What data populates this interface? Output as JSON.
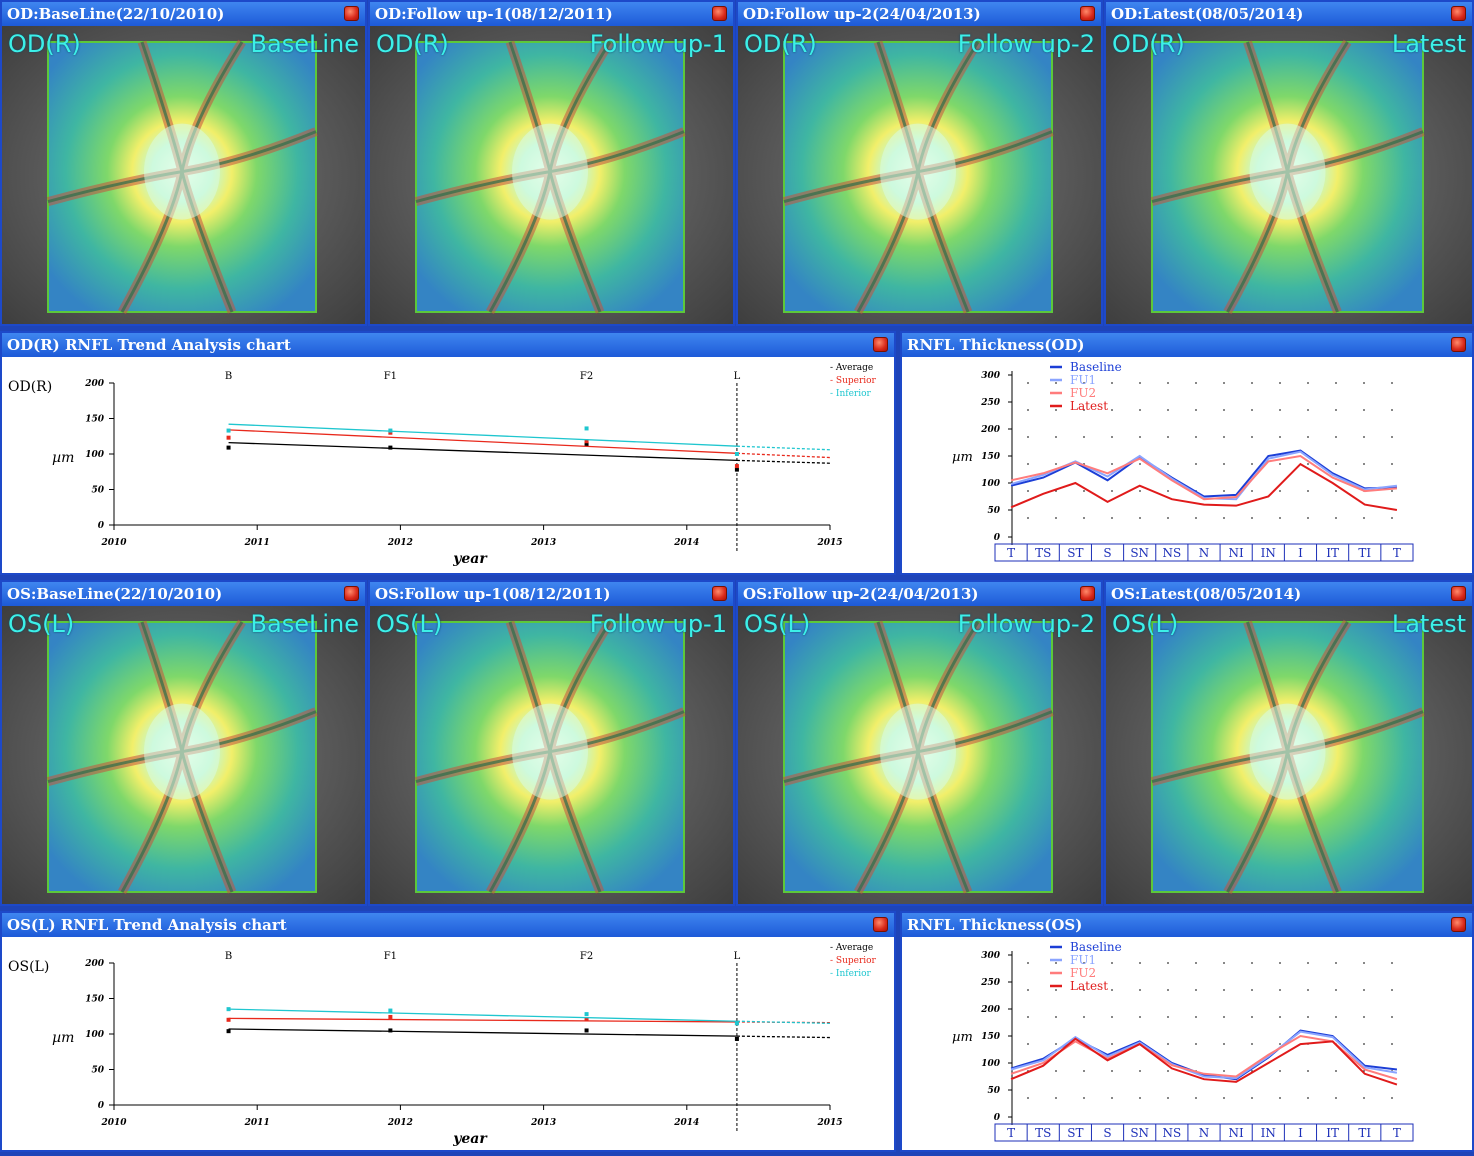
{
  "colors": {
    "average": "#000000",
    "superior": "#e8291c",
    "inferior": "#1fc6cf",
    "baseline": "#1c3ed6",
    "fu1": "#8aa4ff",
    "fu2": "#ff7c7c",
    "latest": "#e01b1b"
  },
  "od_images": [
    {
      "title": "OD:BaseLine(22/10/2010)",
      "eye": "OD(R)",
      "visit": "BaseLine"
    },
    {
      "title": "OD:Follow up-1(08/12/2011)",
      "eye": "OD(R)",
      "visit": "Follow up-1"
    },
    {
      "title": "OD:Follow up-2(24/04/2013)",
      "eye": "OD(R)",
      "visit": "Follow up-2"
    },
    {
      "title": "OD:Latest(08/05/2014)",
      "eye": "OD(R)",
      "visit": "Latest"
    }
  ],
  "os_images": [
    {
      "title": "OS:BaseLine(22/10/2010)",
      "eye": "OS(L)",
      "visit": "BaseLine"
    },
    {
      "title": "OS:Follow up-1(08/12/2011)",
      "eye": "OS(L)",
      "visit": "Follow up-1"
    },
    {
      "title": "OS:Follow up-2(24/04/2013)",
      "eye": "OS(L)",
      "visit": "Follow up-2"
    },
    {
      "title": "OS:Latest(08/05/2014)",
      "eye": "OS(L)",
      "visit": "Latest"
    }
  ],
  "od_trend": {
    "title": "OD(R) RNFL Trend Analysis chart"
  },
  "od_thick": {
    "title": "RNFL Thickness(OD)"
  },
  "os_trend": {
    "title": "OS(L) RNFL Trend Analysis chart"
  },
  "os_thick": {
    "title": "RNFL Thickness(OS)"
  },
  "chart_data": [
    {
      "type": "line",
      "eye_label": "OD(R)",
      "xlabel": "year",
      "ylabel": "µm",
      "xlim": [
        2010,
        2015
      ],
      "ylim": [
        0,
        200
      ],
      "xticks": [
        "2010",
        "2011",
        "2012",
        "2013",
        "2014",
        "2015"
      ],
      "yticks": [
        "0",
        "50",
        "100",
        "150",
        "200"
      ],
      "visit_labels": [
        {
          "label": "B",
          "x": 2010.8
        },
        {
          "label": "F1",
          "x": 2011.93
        },
        {
          "label": "F2",
          "x": 2013.3
        },
        {
          "label": "L",
          "x": 2014.35
        }
      ],
      "legend": [
        "Average",
        "Superior",
        "Inferior"
      ],
      "series": [
        {
          "name": "Average",
          "points": [
            [
              2010.8,
              109
            ],
            [
              2011.93,
              109
            ],
            [
              2013.3,
              114
            ],
            [
              2014.35,
              78
            ]
          ],
          "trend": [
            [
              2010.8,
              116
            ],
            [
              2014.35,
              91
            ]
          ],
          "projection": [
            [
              2014.35,
              91
            ],
            [
              2015,
              87
            ]
          ]
        },
        {
          "name": "Superior",
          "points": [
            [
              2010.8,
              123
            ],
            [
              2011.93,
              130
            ],
            [
              2013.3,
              118
            ],
            [
              2014.35,
              83
            ]
          ],
          "trend": [
            [
              2010.8,
              134
            ],
            [
              2014.35,
              101
            ]
          ],
          "projection": [
            [
              2014.35,
              101
            ],
            [
              2015,
              95
            ]
          ]
        },
        {
          "name": "Inferior",
          "points": [
            [
              2010.8,
              133
            ],
            [
              2011.93,
              133
            ],
            [
              2013.3,
              136
            ],
            [
              2014.35,
              100
            ]
          ],
          "trend": [
            [
              2010.8,
              142
            ],
            [
              2014.35,
              111
            ]
          ],
          "projection": [
            [
              2014.35,
              111
            ],
            [
              2015,
              106
            ]
          ]
        }
      ]
    },
    {
      "type": "line",
      "xlabel": "",
      "ylabel": "µm",
      "ylim": [
        0,
        300
      ],
      "yticks": [
        "0",
        "50",
        "100",
        "150",
        "200",
        "250",
        "300"
      ],
      "categories": [
        "T",
        "TS",
        "ST",
        "S",
        "SN",
        "NS",
        "N",
        "NI",
        "IN",
        "I",
        "IT",
        "TI",
        "T"
      ],
      "legend": [
        "Baseline",
        "FU1",
        "FU2",
        "Latest"
      ],
      "series": [
        {
          "name": "Baseline",
          "values": [
            95,
            110,
            138,
            105,
            148,
            110,
            75,
            78,
            150,
            160,
            118,
            90,
            92
          ]
        },
        {
          "name": "FU1",
          "values": [
            98,
            115,
            140,
            112,
            150,
            108,
            72,
            70,
            145,
            158,
            115,
            88,
            95
          ]
        },
        {
          "name": "FU2",
          "values": [
            105,
            118,
            138,
            118,
            145,
            105,
            70,
            74,
            140,
            150,
            110,
            85,
            90
          ]
        },
        {
          "name": "Latest",
          "values": [
            55,
            80,
            100,
            65,
            95,
            70,
            60,
            58,
            75,
            135,
            100,
            60,
            50
          ]
        }
      ]
    },
    {
      "type": "line",
      "eye_label": "OS(L)",
      "xlabel": "year",
      "ylabel": "µm",
      "xlim": [
        2010,
        2015
      ],
      "ylim": [
        0,
        200
      ],
      "xticks": [
        "2010",
        "2011",
        "2012",
        "2013",
        "2014",
        "2015"
      ],
      "yticks": [
        "0",
        "50",
        "100",
        "150",
        "200"
      ],
      "visit_labels": [
        {
          "label": "B",
          "x": 2010.8
        },
        {
          "label": "F1",
          "x": 2011.93
        },
        {
          "label": "F2",
          "x": 2013.3
        },
        {
          "label": "L",
          "x": 2014.35
        }
      ],
      "legend": [
        "Average",
        "Superior",
        "Inferior"
      ],
      "series": [
        {
          "name": "Average",
          "points": [
            [
              2010.8,
              104
            ],
            [
              2011.93,
              105
            ],
            [
              2013.3,
              105
            ],
            [
              2014.35,
              93
            ]
          ],
          "trend": [
            [
              2010.8,
              107
            ],
            [
              2014.35,
              97
            ]
          ],
          "projection": [
            [
              2014.35,
              97
            ],
            [
              2015,
              95
            ]
          ]
        },
        {
          "name": "Superior",
          "points": [
            [
              2010.8,
              120
            ],
            [
              2011.93,
              124
            ],
            [
              2013.3,
              121
            ],
            [
              2014.35,
              116
            ]
          ],
          "trend": [
            [
              2010.8,
              122
            ],
            [
              2014.35,
              117
            ]
          ],
          "projection": [
            [
              2014.35,
              117
            ],
            [
              2015,
              116
            ]
          ]
        },
        {
          "name": "Inferior",
          "points": [
            [
              2010.8,
              135
            ],
            [
              2011.93,
              133
            ],
            [
              2013.3,
              128
            ],
            [
              2014.35,
              115
            ]
          ],
          "trend": [
            [
              2010.8,
              135
            ],
            [
              2014.35,
              118
            ]
          ],
          "projection": [
            [
              2014.35,
              118
            ],
            [
              2015,
              115
            ]
          ]
        }
      ]
    },
    {
      "type": "line",
      "xlabel": "",
      "ylabel": "µm",
      "ylim": [
        0,
        300
      ],
      "yticks": [
        "0",
        "50",
        "100",
        "150",
        "200",
        "250",
        "300"
      ],
      "categories": [
        "T",
        "TS",
        "ST",
        "S",
        "SN",
        "NS",
        "N",
        "NI",
        "IN",
        "I",
        "IT",
        "TI",
        "T"
      ],
      "legend": [
        "Baseline",
        "FU1",
        "FU2",
        "Latest"
      ],
      "series": [
        {
          "name": "Baseline",
          "values": [
            90,
            108,
            145,
            115,
            140,
            100,
            78,
            70,
            110,
            160,
            150,
            95,
            88
          ]
        },
        {
          "name": "FU1",
          "values": [
            88,
            105,
            148,
            112,
            138,
            98,
            75,
            72,
            112,
            158,
            148,
            92,
            82
          ]
        },
        {
          "name": "FU2",
          "values": [
            80,
            100,
            140,
            108,
            135,
            96,
            80,
            75,
            115,
            150,
            140,
            88,
            70
          ]
        },
        {
          "name": "Latest",
          "values": [
            70,
            95,
            145,
            105,
            135,
            90,
            70,
            65,
            100,
            135,
            140,
            80,
            60
          ]
        }
      ]
    }
  ]
}
